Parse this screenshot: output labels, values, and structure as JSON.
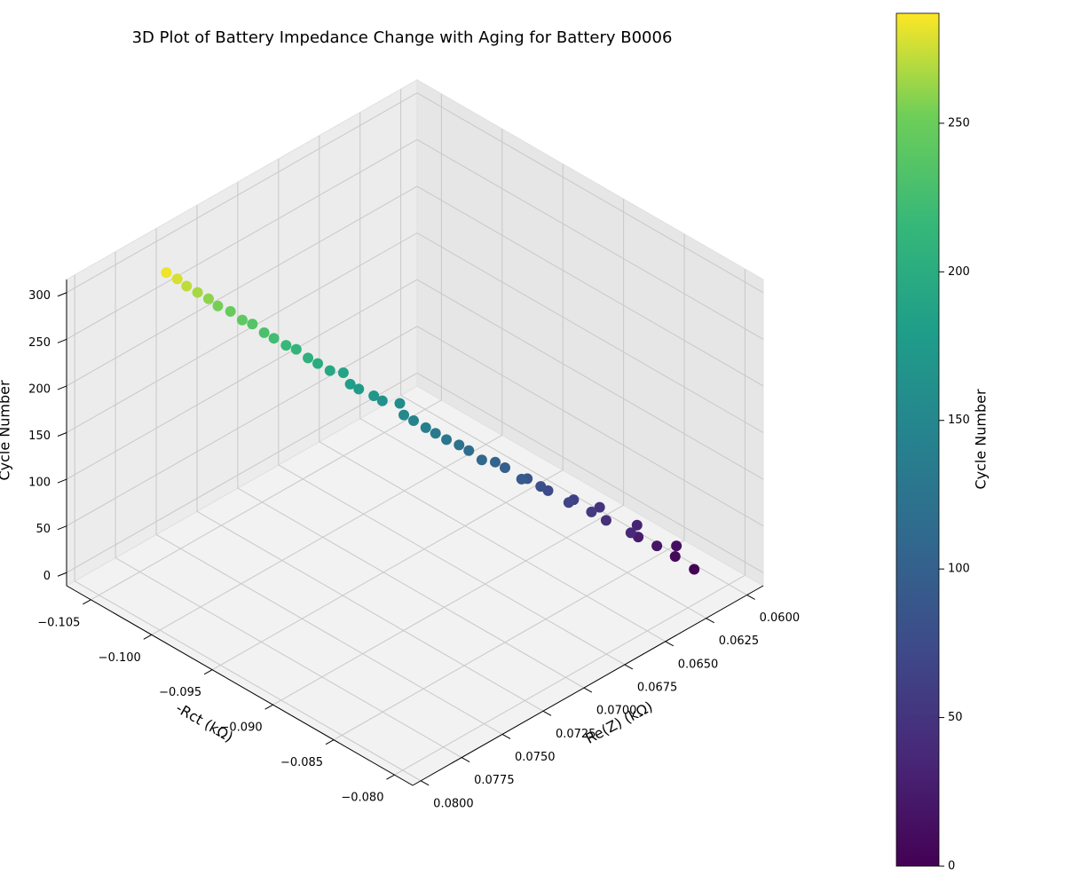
{
  "chart_data": {
    "type": "scatter3d",
    "title": "3D Plot of Battery Impedance Change with Aging for Battery B0006",
    "xlabel": "Re(Z) (kΩ)",
    "ylabel": "-Rct (kΩ)",
    "zlabel": "Cycle Number",
    "colorbar_label": "Cycle Number",
    "cmap": "viridis",
    "grid": true,
    "x": [
      0.061,
      0.0612,
      0.0609,
      0.0618,
      0.0622,
      0.0619,
      0.0628,
      0.0632,
      0.063,
      0.0638,
      0.064,
      0.0646,
      0.0649,
      0.0652,
      0.0655,
      0.066,
      0.0662,
      0.0665,
      0.0671,
      0.0673,
      0.0676,
      0.068,
      0.0683,
      0.0686,
      0.0689,
      0.0692,
      0.069,
      0.0697,
      0.07,
      0.0704,
      0.0707,
      0.0706,
      0.0712,
      0.0715,
      0.0718,
      0.072,
      0.0724,
      0.0727,
      0.073,
      0.0732,
      0.0736,
      0.0738,
      0.0742,
      0.0744,
      0.0747,
      0.075,
      0.0752,
      0.0755
    ],
    "y": [
      -0.0815,
      -0.0828,
      -0.0831,
      -0.0835,
      -0.0845,
      -0.085,
      -0.0843,
      -0.0858,
      -0.0866,
      -0.0862,
      -0.0874,
      -0.087,
      -0.0883,
      -0.0885,
      -0.0892,
      -0.089,
      -0.0901,
      -0.0905,
      -0.0908,
      -0.0916,
      -0.092,
      -0.0925,
      -0.093,
      -0.0934,
      -0.094,
      -0.0944,
      -0.095,
      -0.0955,
      -0.0958,
      -0.0965,
      -0.0968,
      -0.0975,
      -0.0978,
      -0.0984,
      -0.0988,
      -0.0995,
      -0.0998,
      -0.1004,
      -0.1008,
      -0.1015,
      -0.1018,
      -0.1025,
      -0.103,
      -0.1035,
      -0.104,
      -0.1045,
      -0.105,
      -0.1055
    ],
    "z": [
      1,
      7,
      13,
      19,
      25,
      31,
      37,
      43,
      49,
      55,
      61,
      67,
      73,
      79,
      85,
      91,
      97,
      103,
      109,
      115,
      121,
      127,
      133,
      139,
      145,
      151,
      157,
      163,
      169,
      175,
      181,
      187,
      193,
      199,
      205,
      211,
      217,
      223,
      229,
      235,
      241,
      247,
      253,
      259,
      265,
      271,
      277,
      283
    ],
    "xlim": [
      0.059,
      0.0805
    ],
    "ylim": [
      -0.107,
      -0.0785
    ],
    "zlim": [
      -14,
      314
    ],
    "clim": [
      0,
      287
    ],
    "xticks": [
      {
        "value": 0.06,
        "label": "0.0600"
      },
      0.0625,
      {
        "value": 0.065,
        "label": "0.0650"
      },
      0.0675,
      {
        "value": 0.07,
        "label": "0.0700"
      },
      0.0725,
      {
        "value": 0.075,
        "label": "0.0750"
      },
      0.0775,
      {
        "value": 0.08,
        "label": "0.0800"
      }
    ],
    "yticks": [
      {
        "value": -0.105,
        "label": "−0.105"
      },
      {
        "value": -0.1,
        "label": "−0.100"
      },
      {
        "value": -0.095,
        "label": "−0.095"
      },
      {
        "value": -0.09,
        "label": "−0.090"
      },
      {
        "value": -0.085,
        "label": "−0.085"
      },
      {
        "value": -0.08,
        "label": "−0.080"
      }
    ],
    "zticks": [
      0,
      50,
      100,
      150,
      200,
      250,
      300
    ],
    "cticks": [
      0,
      50,
      100,
      150,
      200,
      250
    ]
  }
}
